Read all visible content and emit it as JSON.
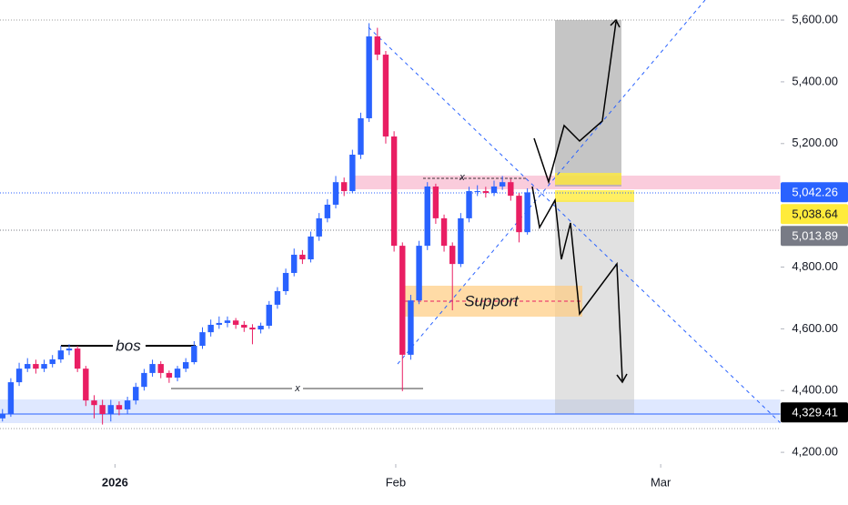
{
  "chart_data": {
    "type": "candlestick",
    "x": [
      0,
      1,
      2,
      3,
      4,
      5,
      6,
      7,
      8,
      9,
      10,
      11,
      12,
      13,
      14,
      15,
      16,
      17,
      18,
      19,
      20,
      21,
      22,
      23,
      24,
      25,
      26,
      27,
      28,
      29,
      30,
      31,
      32,
      33,
      34,
      35,
      36,
      37,
      38,
      39,
      40,
      41,
      42,
      43,
      44,
      45,
      46,
      47,
      48,
      49,
      50,
      51,
      52,
      53,
      54,
      55,
      56,
      57,
      58,
      59,
      60,
      61,
      62,
      63
    ],
    "open": [
      4310,
      4324,
      4427,
      4471,
      4486,
      4471,
      4486,
      4501,
      4530,
      4536,
      4471,
      4368,
      4353,
      4324,
      4353,
      4339,
      4368,
      4412,
      4457,
      4486,
      4457,
      4442,
      4471,
      4492,
      4545,
      4589,
      4613,
      4619,
      4627,
      4613,
      4604,
      4598,
      4610,
      4678,
      4722,
      4781,
      4840,
      4825,
      4899,
      4958,
      5002,
      5075,
      5046,
      5164,
      5282,
      5547,
      5488,
      5223,
      4869,
      4516,
      4692,
      4869,
      5061,
      4958,
      4869,
      4810,
      4958,
      5046,
      5046,
      5040,
      5061,
      5075,
      5031,
      4913
    ],
    "high": [
      4340,
      4440,
      4490,
      4505,
      4500,
      4500,
      4515,
      4545,
      4550,
      4545,
      4480,
      4385,
      4370,
      4370,
      4365,
      4380,
      4425,
      4470,
      4500,
      4495,
      4465,
      4480,
      4505,
      4560,
      4605,
      4630,
      4640,
      4640,
      4635,
      4625,
      4615,
      4620,
      4690,
      4735,
      4795,
      4860,
      4855,
      4915,
      4975,
      5020,
      5095,
      5090,
      5180,
      5300,
      5590,
      5575,
      5500,
      5240,
      4880,
      4710,
      4885,
      5075,
      5070,
      4970,
      4880,
      4975,
      5060,
      5065,
      5060,
      5080,
      5095,
      5085,
      5040,
      5055
    ],
    "low": [
      4300,
      4315,
      4415,
      4460,
      4455,
      4460,
      4475,
      4490,
      4515,
      4460,
      4350,
      4310,
      4290,
      4300,
      4320,
      4325,
      4355,
      4400,
      4445,
      4440,
      4425,
      4430,
      4460,
      4485,
      4535,
      4575,
      4600,
      4605,
      4600,
      4590,
      4550,
      4585,
      4600,
      4665,
      4710,
      4770,
      4810,
      4815,
      4885,
      4945,
      4990,
      5030,
      5040,
      5150,
      5270,
      5470,
      5200,
      4850,
      4398,
      4500,
      4680,
      4855,
      4940,
      4850,
      4660,
      4800,
      4945,
      5030,
      5025,
      5030,
      5050,
      5015,
      4880,
      4905
    ],
    "close": [
      4324,
      4427,
      4471,
      4486,
      4471,
      4486,
      4501,
      4530,
      4536,
      4471,
      4368,
      4353,
      4324,
      4353,
      4339,
      4368,
      4412,
      4457,
      4486,
      4457,
      4442,
      4471,
      4492,
      4545,
      4589,
      4613,
      4619,
      4627,
      4613,
      4604,
      4598,
      4610,
      4678,
      4722,
      4781,
      4840,
      4825,
      4899,
      4958,
      5002,
      5075,
      5046,
      5164,
      5282,
      5547,
      5488,
      5223,
      4869,
      4516,
      4692,
      4869,
      5061,
      4958,
      4869,
      4810,
      4958,
      5046,
      5046,
      5040,
      5061,
      5075,
      5031,
      4913,
      5042
    ],
    "up_color": "#2962ff",
    "down_color": "#e91e63",
    "xlim": [
      -0.3,
      93.4
    ],
    "xticks": [
      {
        "value": 13.5,
        "label": "2026"
      },
      {
        "value": 47.2,
        "label": "Feb"
      },
      {
        "value": 79,
        "label": "Mar"
      }
    ],
    "ylim": [
      4162,
      5665
    ],
    "yticks": [
      {
        "value": 4200,
        "label": "4,200.00"
      },
      {
        "value": 4400,
        "label": "4,400.00"
      },
      {
        "value": 4600,
        "label": "4,600.00"
      },
      {
        "value": 4800,
        "label": "4,800.00"
      },
      {
        "value": 5200,
        "label": "5,200.00"
      },
      {
        "value": 5400,
        "label": "5,400.00"
      },
      {
        "value": 5600,
        "label": "5,600.00"
      }
    ],
    "price_labels": [
      {
        "value": 5042.26,
        "label": "5,042.26",
        "color": "#2962ff"
      },
      {
        "value": 5038.64,
        "label": "5,038.64",
        "color": "#ffeb3b"
      },
      {
        "value": 5013.89,
        "label": "5,013.89",
        "color": "#787b86"
      },
      {
        "value": 4329.41,
        "label": "4,329.41",
        "color": "#000000"
      }
    ],
    "annotations": [
      "bos",
      "Support",
      "x",
      "x"
    ]
  }
}
